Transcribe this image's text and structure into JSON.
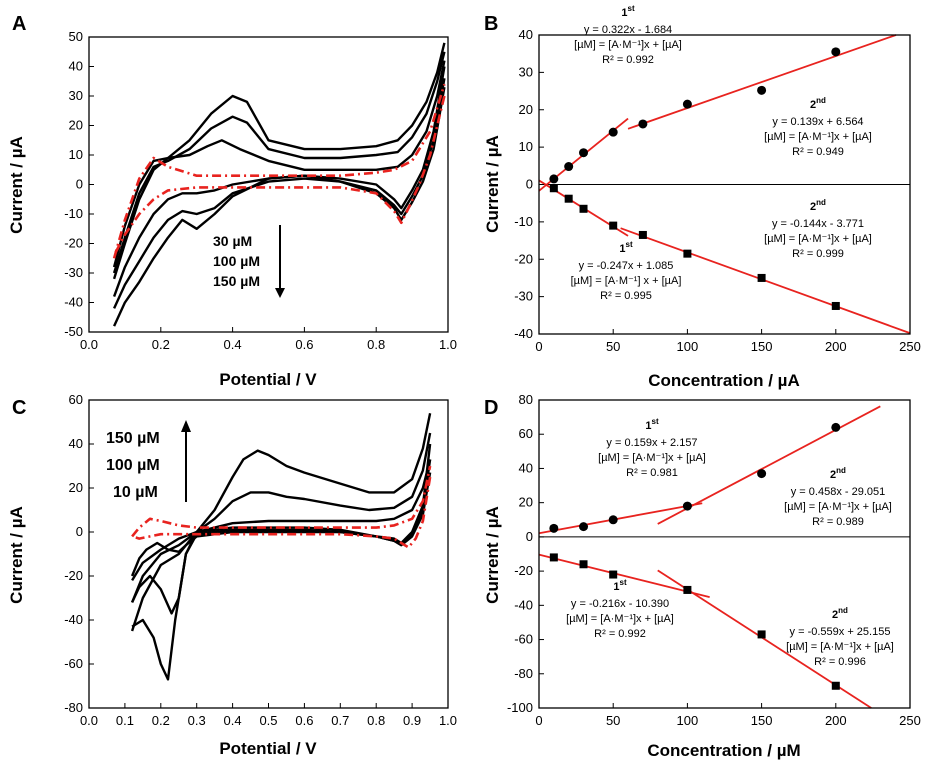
{
  "chart_data": [
    {
      "panel": "A",
      "type": "line",
      "xlabel": "Potential / V",
      "ylabel": "Current / µA",
      "xlim": [
        0.0,
        1.0
      ],
      "ylim": [
        -50,
        50
      ],
      "xticks": [
        "0.0",
        "0.2",
        "0.4",
        "0.6",
        "0.8",
        "1.0"
      ],
      "yticks": [
        "-50",
        "-40",
        "-30",
        "-20",
        "-10",
        "0",
        "10",
        "20",
        "30",
        "40",
        "50"
      ],
      "concentration_labels": [
        "30 µM",
        "100 µM",
        "150 µM"
      ],
      "colors": {
        "sample": "#000000",
        "blank": "#e8231f"
      },
      "series": [
        {
          "style": "solid",
          "color": "#000000",
          "x": [
            0.07,
            0.1,
            0.14,
            0.18,
            0.22,
            0.28,
            0.34,
            0.4,
            0.44,
            0.5,
            0.6,
            0.7,
            0.8,
            0.86,
            0.9,
            0.94,
            0.97,
            0.99
          ],
          "y": [
            -32,
            -20,
            -5,
            5,
            9,
            15,
            24,
            30,
            28,
            15,
            12,
            12,
            13,
            15,
            20,
            28,
            38,
            48
          ]
        },
        {
          "style": "solid",
          "color": "#000000",
          "x": [
            0.99,
            0.96,
            0.93,
            0.9,
            0.87,
            0.85,
            0.8,
            0.7,
            0.6,
            0.5,
            0.4,
            0.35,
            0.3,
            0.26,
            0.22,
            0.18,
            0.14,
            0.1,
            0.07
          ],
          "y": [
            40,
            18,
            5,
            -2,
            -8,
            -5,
            0,
            2,
            3,
            2,
            -4,
            -10,
            -15,
            -12,
            -18,
            -25,
            -33,
            -40,
            -48
          ]
        },
        {
          "style": "solid",
          "color": "#000000",
          "x": [
            0.07,
            0.1,
            0.14,
            0.18,
            0.22,
            0.28,
            0.34,
            0.4,
            0.44,
            0.5,
            0.6,
            0.7,
            0.8,
            0.86,
            0.9,
            0.94,
            0.97,
            0.99
          ],
          "y": [
            -30,
            -18,
            -3,
            6,
            8,
            12,
            19,
            23,
            21,
            12,
            9,
            9,
            10,
            11,
            16,
            24,
            35,
            45
          ]
        },
        {
          "style": "solid",
          "color": "#000000",
          "x": [
            0.99,
            0.96,
            0.93,
            0.9,
            0.87,
            0.85,
            0.8,
            0.7,
            0.6,
            0.5,
            0.4,
            0.35,
            0.3,
            0.26,
            0.22,
            0.18,
            0.14,
            0.1,
            0.07
          ],
          "y": [
            36,
            15,
            3,
            -4,
            -10,
            -7,
            -2,
            1,
            2,
            1,
            -3,
            -8,
            -10,
            -9,
            -12,
            -18,
            -26,
            -34,
            -42
          ]
        },
        {
          "style": "solid",
          "color": "#000000",
          "x": [
            0.07,
            0.1,
            0.14,
            0.18,
            0.22,
            0.28,
            0.33,
            0.37,
            0.42,
            0.5,
            0.6,
            0.7,
            0.8,
            0.86,
            0.9,
            0.94,
            0.97,
            0.99
          ],
          "y": [
            -28,
            -14,
            0,
            8,
            9,
            10,
            13,
            15,
            12,
            8,
            5,
            5,
            5,
            6,
            10,
            18,
            30,
            42
          ]
        },
        {
          "style": "solid",
          "color": "#000000",
          "x": [
            0.99,
            0.96,
            0.93,
            0.9,
            0.87,
            0.85,
            0.8,
            0.7,
            0.6,
            0.5,
            0.4,
            0.35,
            0.3,
            0.26,
            0.22,
            0.18,
            0.14,
            0.1,
            0.07
          ],
          "y": [
            33,
            12,
            1,
            -6,
            -12,
            -8,
            -3,
            1,
            3,
            2,
            0,
            -2,
            -3,
            -3,
            -5,
            -10,
            -18,
            -28,
            -38
          ]
        },
        {
          "style": "dashdot",
          "color": "#e8231f",
          "x": [
            0.07,
            0.1,
            0.14,
            0.18,
            0.22,
            0.3,
            0.4,
            0.5,
            0.6,
            0.7,
            0.8,
            0.85,
            0.9,
            0.95,
            0.99
          ],
          "y": [
            -25,
            -12,
            2,
            9,
            6,
            3,
            3,
            3,
            3,
            3,
            4,
            5,
            8,
            18,
            34
          ]
        },
        {
          "style": "dashdot",
          "color": "#e8231f",
          "x": [
            0.99,
            0.95,
            0.92,
            0.89,
            0.87,
            0.85,
            0.8,
            0.7,
            0.6,
            0.5,
            0.4,
            0.3,
            0.22,
            0.18,
            0.14,
            0.1,
            0.07
          ],
          "y": [
            30,
            10,
            0,
            -8,
            -13,
            -9,
            -3,
            -1,
            -1,
            -1,
            -1,
            -1,
            -2,
            -5,
            -10,
            -17,
            -24
          ]
        }
      ]
    },
    {
      "panel": "B",
      "type": "scatter",
      "xlabel": "Concentration / µA",
      "ylabel": "Current / µA",
      "xlim": [
        0,
        250
      ],
      "ylim": [
        -40,
        40
      ],
      "xticks": [
        "0",
        "50",
        "100",
        "150",
        "200",
        "250"
      ],
      "yticks": [
        "-40",
        "-30",
        "-20",
        "-10",
        "0",
        "10",
        "20",
        "30",
        "40"
      ],
      "points_anodic": {
        "x": [
          10,
          20,
          30,
          50,
          70,
          100,
          150,
          200
        ],
        "y": [
          1.5,
          4.8,
          8.5,
          14,
          16.2,
          21.5,
          25.2,
          35.5
        ]
      },
      "points_cathodic": {
        "x": [
          10,
          20,
          30,
          50,
          70,
          100,
          150,
          200
        ],
        "y": [
          -1,
          -3.8,
          -6.5,
          -11,
          -13.5,
          -18.5,
          -25,
          -32.5
        ]
      },
      "fits": [
        {
          "slope": 0.322,
          "intercept": -1.684,
          "x": [
            0,
            60
          ]
        },
        {
          "slope": 0.139,
          "intercept": 6.564,
          "x": [
            60,
            250
          ]
        },
        {
          "slope": -0.247,
          "intercept": 1.085,
          "x": [
            0,
            60
          ]
        },
        {
          "slope": -0.144,
          "intercept": -3.771,
          "x": [
            55,
            250
          ]
        }
      ],
      "annotations": [
        {
          "order": "1",
          "sup": "st",
          "eq": "y = 0.322x - 1.684",
          "units": "[µM] = [A·M⁻¹]x + [µA]",
          "r2": "R² = 0.992"
        },
        {
          "order": "2",
          "sup": "nd",
          "eq": "y = 0.139x + 6.564",
          "units": "[µM] = [A·M⁻¹]x + [µA]",
          "r2": "R² = 0.949"
        },
        {
          "order": "2",
          "sup": "nd",
          "eq": "y = -0.144x - 3.771",
          "units": "[µM] = [A·M⁻¹]x + [µA]",
          "r2": "R² = 0.999"
        },
        {
          "order": "1",
          "sup": "st",
          "eq": "y = -0.247x + 1.085",
          "units": "[µM] = [A·M⁻¹] x + [µA]",
          "r2": "R² = 0.995"
        }
      ]
    },
    {
      "panel": "C",
      "type": "line",
      "xlabel": "Potential / V",
      "ylabel": "Current / µA",
      "xlim": [
        0.0,
        1.0
      ],
      "ylim": [
        -80,
        60
      ],
      "xticks": [
        "0.0",
        "0.1",
        "0.2",
        "0.3",
        "0.4",
        "0.5",
        "0.6",
        "0.7",
        "0.8",
        "0.9",
        "1.0"
      ],
      "yticks": [
        "-80",
        "-60",
        "-40",
        "-20",
        "0",
        "20",
        "40",
        "60"
      ],
      "concentration_labels": [
        "150 µM",
        "100 µM",
        "10 µM"
      ],
      "colors": {
        "sample": "#000000",
        "blank": "#e8231f"
      },
      "series": [
        {
          "style": "solid",
          "color": "#000000",
          "x": [
            0.12,
            0.15,
            0.2,
            0.25,
            0.3,
            0.35,
            0.4,
            0.43,
            0.47,
            0.5,
            0.55,
            0.6,
            0.7,
            0.78,
            0.85,
            0.9,
            0.93,
            0.95
          ],
          "y": [
            -45,
            -30,
            -15,
            -10,
            0,
            10,
            25,
            33,
            37,
            35,
            30,
            27,
            22,
            18,
            18,
            24,
            38,
            54
          ]
        },
        {
          "style": "solid",
          "color": "#000000",
          "x": [
            0.95,
            0.93,
            0.9,
            0.87,
            0.85,
            0.8,
            0.7,
            0.6,
            0.5,
            0.4,
            0.35,
            0.3,
            0.27,
            0.24,
            0.22,
            0.2,
            0.18,
            0.15,
            0.12
          ],
          "y": [
            40,
            12,
            0,
            -5,
            -3,
            -2,
            1,
            2,
            2,
            2,
            1,
            0,
            -10,
            -40,
            -67,
            -60,
            -48,
            -40,
            -43
          ]
        },
        {
          "style": "solid",
          "color": "#000000",
          "x": [
            0.12,
            0.15,
            0.2,
            0.25,
            0.3,
            0.35,
            0.4,
            0.45,
            0.5,
            0.55,
            0.6,
            0.7,
            0.78,
            0.85,
            0.9,
            0.93,
            0.95
          ],
          "y": [
            -32,
            -20,
            -10,
            -6,
            0,
            6,
            14,
            18,
            18,
            16,
            15,
            12,
            10,
            11,
            16,
            28,
            45
          ]
        },
        {
          "style": "solid",
          "color": "#000000",
          "x": [
            0.95,
            0.93,
            0.9,
            0.87,
            0.85,
            0.8,
            0.7,
            0.6,
            0.5,
            0.4,
            0.35,
            0.3,
            0.27,
            0.25,
            0.23,
            0.2,
            0.17,
            0.14,
            0.12
          ],
          "y": [
            33,
            10,
            -1,
            -5,
            -4,
            -2,
            0,
            1,
            1,
            1,
            0,
            -1,
            -10,
            -30,
            -37,
            -26,
            -20,
            -25,
            -32
          ]
        },
        {
          "style": "solid",
          "color": "#000000",
          "x": [
            0.12,
            0.15,
            0.2,
            0.25,
            0.3,
            0.35,
            0.4,
            0.5,
            0.6,
            0.7,
            0.8,
            0.85,
            0.9,
            0.93,
            0.95
          ],
          "y": [
            -22,
            -14,
            -8,
            -3,
            0,
            2,
            4,
            5,
            5,
            5,
            5,
            6,
            10,
            20,
            33
          ]
        },
        {
          "style": "solid",
          "color": "#000000",
          "x": [
            0.95,
            0.93,
            0.9,
            0.87,
            0.85,
            0.8,
            0.7,
            0.6,
            0.5,
            0.4,
            0.3,
            0.27,
            0.25,
            0.22,
            0.19,
            0.16,
            0.14,
            0.12
          ],
          "y": [
            27,
            8,
            -2,
            -6,
            -4,
            -2,
            0,
            0,
            0,
            0,
            -2,
            -6,
            -9,
            -8,
            -5,
            -8,
            -12,
            -20
          ]
        },
        {
          "style": "dashdot",
          "color": "#e8231f",
          "x": [
            0.12,
            0.14,
            0.17,
            0.2,
            0.25,
            0.3,
            0.4,
            0.5,
            0.6,
            0.7,
            0.8,
            0.85,
            0.9,
            0.93,
            0.95
          ],
          "y": [
            -2,
            2,
            6,
            5,
            3,
            2,
            2,
            2,
            2,
            2,
            2,
            3,
            6,
            14,
            30
          ]
        },
        {
          "style": "dashdot",
          "color": "#e8231f",
          "x": [
            0.95,
            0.93,
            0.91,
            0.89,
            0.87,
            0.85,
            0.8,
            0.7,
            0.6,
            0.5,
            0.4,
            0.3,
            0.25,
            0.2,
            0.17,
            0.14,
            0.12
          ],
          "y": [
            25,
            5,
            -3,
            -7,
            -5,
            -3,
            -2,
            -1,
            -1,
            -1,
            -1,
            -1,
            -1,
            -1,
            -2,
            -3,
            -2
          ]
        }
      ]
    },
    {
      "panel": "D",
      "type": "scatter",
      "xlabel": "Concentration / µM",
      "ylabel": "Current / µA",
      "xlim": [
        0,
        250
      ],
      "ylim": [
        -100,
        80
      ],
      "xticks": [
        "0",
        "50",
        "100",
        "150",
        "200",
        "250"
      ],
      "yticks": [
        "-100",
        "-80",
        "-60",
        "-40",
        "-20",
        "0",
        "20",
        "40",
        "60",
        "80"
      ],
      "points_anodic": {
        "x": [
          10,
          30,
          50,
          100,
          150,
          200
        ],
        "y": [
          5,
          6,
          10,
          18,
          37,
          64
        ]
      },
      "points_cathodic": {
        "x": [
          10,
          30,
          50,
          100,
          150,
          200
        ],
        "y": [
          -12,
          -16,
          -22,
          -31,
          -57,
          -87
        ]
      },
      "fits": [
        {
          "slope": 0.159,
          "intercept": 2.157,
          "x": [
            0,
            110
          ]
        },
        {
          "slope": 0.458,
          "intercept": -29.051,
          "x": [
            80,
            230
          ]
        },
        {
          "slope": -0.216,
          "intercept": -10.39,
          "x": [
            0,
            115
          ]
        },
        {
          "slope": -0.559,
          "intercept": 25.155,
          "x": [
            80,
            225
          ]
        }
      ],
      "annotations": [
        {
          "order": "1",
          "sup": "st",
          "eq": "y = 0.159x + 2.157",
          "units": "[µM] = [A·M⁻¹]x + [µA]",
          "r2": "R² = 0.981"
        },
        {
          "order": "2",
          "sup": "nd",
          "eq": "y = 0.458x - 29.051",
          "units": "[µM] = [A·M⁻¹]x + [µA]",
          "r2": "R² = 0.989"
        },
        {
          "order": "1",
          "sup": "st",
          "eq": "y = -0.216x - 10.390",
          "units": "[µM] = [A·M⁻¹]x + [µA]",
          "r2": "R² = 0.992"
        },
        {
          "order": "2",
          "sup": "nd",
          "eq": "y = -0.559x + 25.155",
          "units": "[µM] = [A·M⁻¹]x + [µA]",
          "r2": "R² = 0.996"
        }
      ]
    }
  ]
}
